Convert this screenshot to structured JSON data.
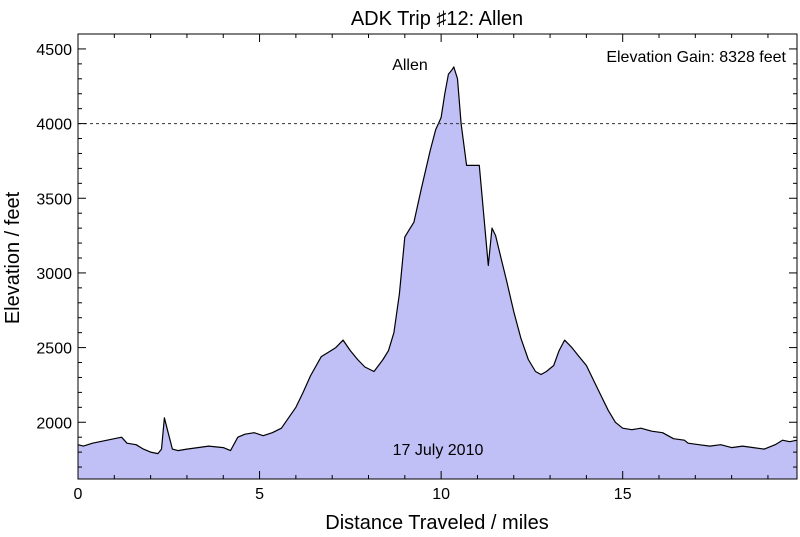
{
  "chart_data": {
    "type": "area",
    "title": "ADK Trip ♯12: Allen",
    "xlabel": "Distance Traveled / miles",
    "ylabel": "Elevation / feet",
    "xlim": [
      0,
      19.8
    ],
    "ylim": [
      1620,
      4600
    ],
    "x_ticks": [
      0,
      5,
      10,
      15
    ],
    "y_ticks": [
      2000,
      2500,
      3000,
      3500,
      4000,
      4500
    ],
    "reference_line": {
      "y": 4000,
      "style": "dashed"
    },
    "fill_color": "#c0c0f6",
    "line_color": "#000000",
    "grid": false,
    "annotations": {
      "peak_label": "Allen",
      "gain_label": "Elevation Gain: 8328 feet",
      "date_label": "17 July 2010"
    },
    "peak": {
      "x": 10.35,
      "y": 4380
    },
    "series": [
      {
        "x": [
          0,
          0.15,
          0.4,
          0.6,
          0.8,
          1.0,
          1.2,
          1.35,
          1.6,
          1.8,
          2.0,
          2.2,
          2.3,
          2.38,
          2.45,
          2.6,
          2.75,
          3.0,
          3.3,
          3.6,
          4.0,
          4.2,
          4.4,
          4.6,
          4.85,
          5.1,
          5.35,
          5.6,
          5.8,
          6.0,
          6.2,
          6.4,
          6.7,
          6.9,
          7.1,
          7.3,
          7.5,
          7.7,
          7.9,
          8.15,
          8.4,
          8.55,
          8.7,
          8.85,
          9.0,
          9.1,
          9.25,
          9.45,
          9.7,
          9.85,
          10.0,
          10.1,
          10.2,
          10.3,
          10.35,
          10.45,
          10.55,
          10.7,
          10.85,
          10.95,
          11.05,
          11.3,
          11.4,
          11.5,
          11.65,
          11.8,
          12.0,
          12.2,
          12.4,
          12.6,
          12.75,
          12.9,
          13.1,
          13.25,
          13.4,
          13.6,
          13.8,
          14.0,
          14.2,
          14.4,
          14.6,
          14.8,
          15.0,
          15.25,
          15.5,
          15.8,
          16.1,
          16.4,
          16.7,
          16.8,
          17.1,
          17.4,
          17.7,
          18.0,
          18.3,
          18.6,
          18.9,
          19.2,
          19.4,
          19.6,
          19.8
        ],
        "values": [
          1850,
          1840,
          1860,
          1870,
          1880,
          1890,
          1900,
          1860,
          1850,
          1820,
          1800,
          1790,
          1820,
          2030,
          1960,
          1820,
          1810,
          1820,
          1830,
          1840,
          1830,
          1810,
          1900,
          1920,
          1930,
          1910,
          1930,
          1960,
          2030,
          2100,
          2200,
          2310,
          2440,
          2470,
          2500,
          2550,
          2480,
          2420,
          2370,
          2340,
          2420,
          2480,
          2600,
          2860,
          3240,
          3280,
          3340,
          3560,
          3820,
          3960,
          4040,
          4200,
          4330,
          4360,
          4380,
          4300,
          4000,
          3720,
          3720,
          3720,
          3720,
          3050,
          3300,
          3250,
          3100,
          2950,
          2740,
          2560,
          2420,
          2340,
          2320,
          2340,
          2380,
          2480,
          2550,
          2500,
          2440,
          2380,
          2280,
          2180,
          2080,
          2000,
          1960,
          1950,
          1960,
          1940,
          1930,
          1890,
          1880,
          1860,
          1850,
          1840,
          1850,
          1830,
          1840,
          1830,
          1820,
          1850,
          1880,
          1870,
          1880
        ]
      }
    ]
  }
}
